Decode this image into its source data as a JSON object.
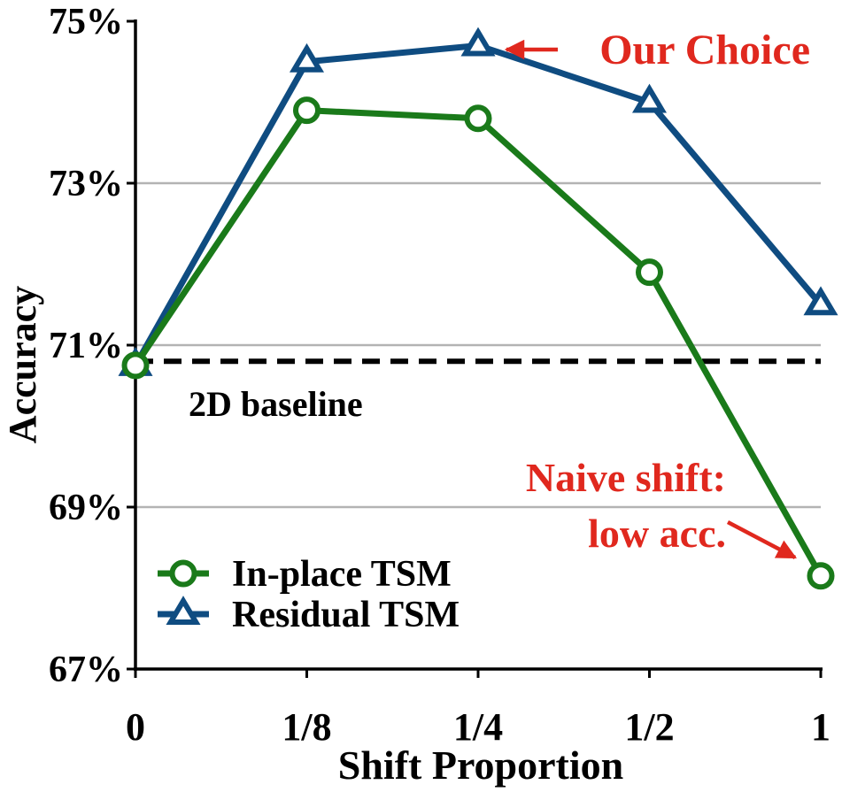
{
  "chart_data": {
    "type": "line",
    "title": "",
    "xlabel": "Shift Proportion",
    "ylabel": "Accuracy",
    "categories": [
      "0",
      "1/8",
      "1/4",
      "1/2",
      "1"
    ],
    "ylim": [
      67,
      75
    ],
    "yticks": [
      67,
      69,
      71,
      73,
      75
    ],
    "ytick_labels": [
      "67%",
      "69%",
      "71%",
      "73%",
      "75%"
    ],
    "grid": true,
    "legend_position": "bottom-left",
    "series": [
      {
        "name": "In-place TSM",
        "marker": "circle",
        "color": "#1a7a1a",
        "values": [
          70.75,
          73.9,
          73.8,
          71.9,
          68.15
        ]
      },
      {
        "name": "Residual TSM",
        "marker": "triangle",
        "color": "#0f4c81",
        "values": [
          70.75,
          74.5,
          74.7,
          74.0,
          71.5
        ]
      }
    ],
    "baseline": {
      "label": "2D baseline",
      "value": 70.8,
      "color": "#000000"
    },
    "annotations": [
      {
        "text": "Our Choice",
        "color": "#e0281e",
        "target_series": "Residual TSM",
        "target_category": "1/4"
      },
      {
        "lines": [
          "Naive shift:",
          "low acc."
        ],
        "color": "#e0281e",
        "target_series": "In-place TSM",
        "target_category": "1"
      }
    ]
  }
}
